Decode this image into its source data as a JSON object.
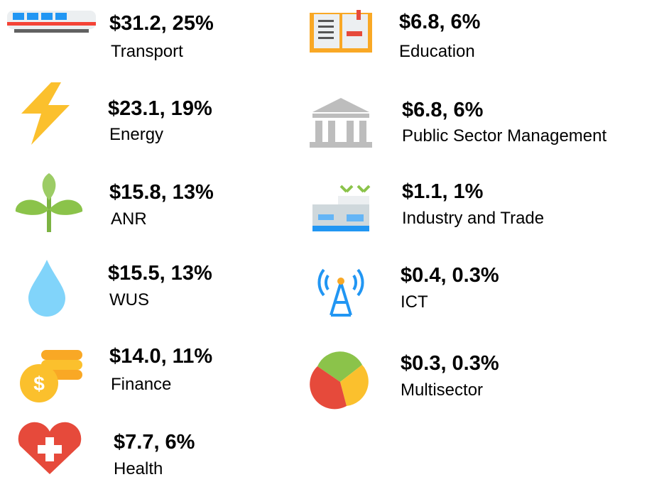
{
  "items": [
    {
      "value": "$31.2, 25%",
      "label": "Transport"
    },
    {
      "value": "$23.1, 19%",
      "label": "Energy"
    },
    {
      "value": "$15.8, 13%",
      "label": "ANR"
    },
    {
      "value": "$15.5, 13%",
      "label": "WUS"
    },
    {
      "value": "$14.0, 11%",
      "label": "Finance"
    },
    {
      "value": "$7.7, 6%",
      "label": "Health"
    },
    {
      "value": "$6.8, 6%",
      "label": "Education"
    },
    {
      "value": "$6.8, 6%",
      "label": "Public Sector Management"
    },
    {
      "value": "$1.1, 1%",
      "label": "Industry and Trade"
    },
    {
      "value": "$0.4, 0.3%",
      "label": "ICT"
    },
    {
      "value": "$0.3, 0.3%",
      "label": "Multisector"
    }
  ]
}
